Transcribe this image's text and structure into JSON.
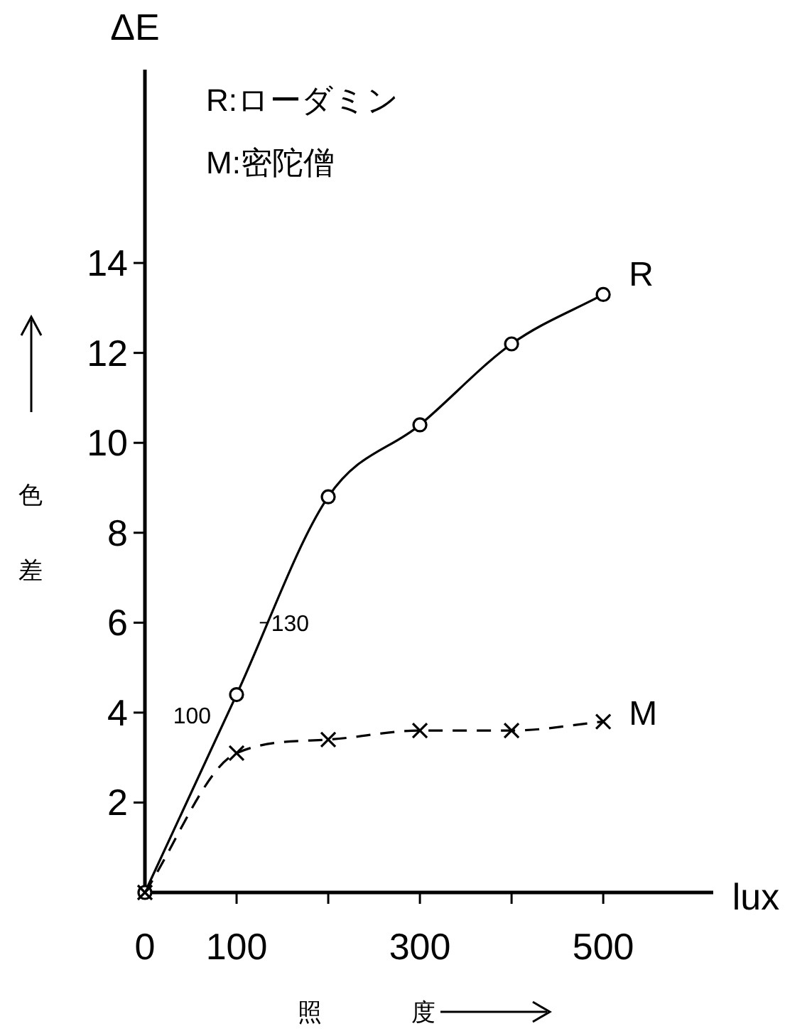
{
  "chart_data": {
    "type": "line",
    "xlabel": "照度",
    "ylabel": "色差",
    "x": [
      0,
      100,
      200,
      300,
      400,
      500
    ],
    "series": [
      {
        "name": "R",
        "color": "#000000",
        "values": [
          0,
          4.4,
          8.8,
          10.4,
          12.2,
          13.3
        ],
        "line_style": "solid",
        "marker": "circle"
      },
      {
        "name": "M",
        "color": "#000000",
        "values": [
          0,
          3.1,
          3.4,
          3.6,
          3.6,
          3.8
        ],
        "line_style": "dashed",
        "marker": "cross"
      }
    ],
    "xlim": [
      0,
      620
    ],
    "ylim": [
      0,
      18.3
    ],
    "xticks": [
      {
        "value": 0,
        "label": "0"
      },
      100,
      {
        "value": 200,
        "label": null
      },
      300,
      {
        "value": 400,
        "label": null
      },
      500
    ],
    "yticks": [
      2,
      4,
      6,
      8,
      10,
      12,
      14
    ],
    "annotations": [
      "ΔE",
      "lux",
      "R:ローダミン",
      "M:密陀僧",
      {
        "text": "100",
        "x": 100,
        "y": 4.4
      },
      {
        "text": "130",
        "x": 130,
        "y": 6
      }
    ]
  }
}
